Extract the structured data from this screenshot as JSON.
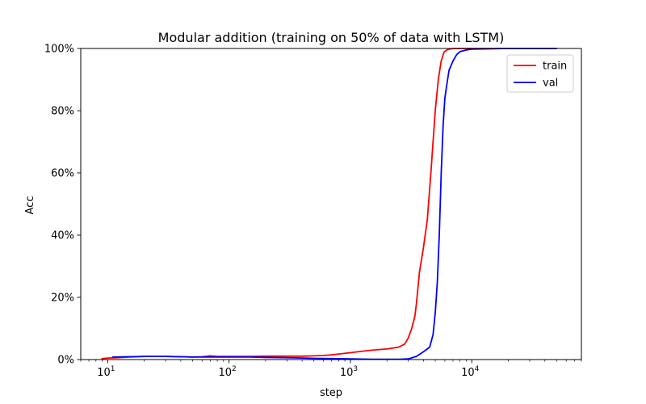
{
  "chart_data": {
    "type": "line",
    "title": "Modular addition (training on 50% of data with LSTM)",
    "xlabel": "step",
    "ylabel": "Acc",
    "xscale": "log",
    "xlim": [
      6,
      80000
    ],
    "ylim": [
      0,
      100
    ],
    "x_ticks": [
      {
        "value": 10,
        "base": "10",
        "exp": "1"
      },
      {
        "value": 100,
        "base": "10",
        "exp": "2"
      },
      {
        "value": 1000,
        "base": "10",
        "exp": "3"
      },
      {
        "value": 10000,
        "base": "10",
        "exp": "4"
      }
    ],
    "y_ticks": [
      {
        "value": 0,
        "label": "0%"
      },
      {
        "value": 20,
        "label": "20%"
      },
      {
        "value": 40,
        "label": "40%"
      },
      {
        "value": 60,
        "label": "60%"
      },
      {
        "value": 80,
        "label": "80%"
      },
      {
        "value": 100,
        "label": "100%"
      }
    ],
    "grid": false,
    "legend_position": "top-right",
    "series": [
      {
        "name": "train",
        "color": "#ff0000",
        "x": [
          9,
          10,
          12,
          15,
          20,
          30,
          40,
          50,
          60,
          70,
          80,
          100,
          150,
          200,
          300,
          400,
          500,
          600,
          700,
          800,
          1000,
          1200,
          1500,
          2000,
          2500,
          2800,
          3000,
          3200,
          3400,
          3500,
          3700,
          4000,
          4300,
          4600,
          5000,
          5300,
          5600,
          5900,
          6200,
          6600,
          7000,
          8000,
          9000,
          10000,
          20000,
          50000
        ],
        "y": [
          0.3,
          0.5,
          0.6,
          0.8,
          1.0,
          1.0,
          0.9,
          0.8,
          0.9,
          1.2,
          1.0,
          1.0,
          1.0,
          1.1,
          1.1,
          1.1,
          1.2,
          1.3,
          1.5,
          1.8,
          2.2,
          2.6,
          3.0,
          3.4,
          4.0,
          5.0,
          7.0,
          10.0,
          14.0,
          18.0,
          28.0,
          36.0,
          45.0,
          60.0,
          80.0,
          90.0,
          96.0,
          98.8,
          99.5,
          99.8,
          100,
          100,
          100,
          100,
          100,
          100
        ]
      },
      {
        "name": "val",
        "color": "#0000ff",
        "x": [
          11,
          15,
          20,
          30,
          40,
          50,
          60,
          80,
          100,
          150,
          200,
          300,
          400,
          500,
          700,
          1000,
          1500,
          2000,
          2500,
          3000,
          3500,
          4000,
          4500,
          4800,
          5000,
          5200,
          5400,
          5600,
          5800,
          6000,
          6200,
          6500,
          7000,
          7500,
          8000,
          9000,
          10000,
          20000,
          50000
        ],
        "y": [
          0.8,
          0.9,
          1.0,
          1.0,
          0.9,
          0.8,
          0.8,
          0.8,
          0.8,
          0.8,
          0.7,
          0.6,
          0.5,
          0.4,
          0.3,
          0.2,
          0.1,
          0.1,
          0.1,
          0.2,
          1.0,
          2.5,
          4.0,
          8.0,
          15.0,
          25.0,
          40.0,
          60.0,
          75.0,
          84.0,
          88.0,
          93.0,
          96.0,
          98.0,
          99.0,
          99.5,
          99.8,
          100,
          100
        ]
      }
    ]
  }
}
